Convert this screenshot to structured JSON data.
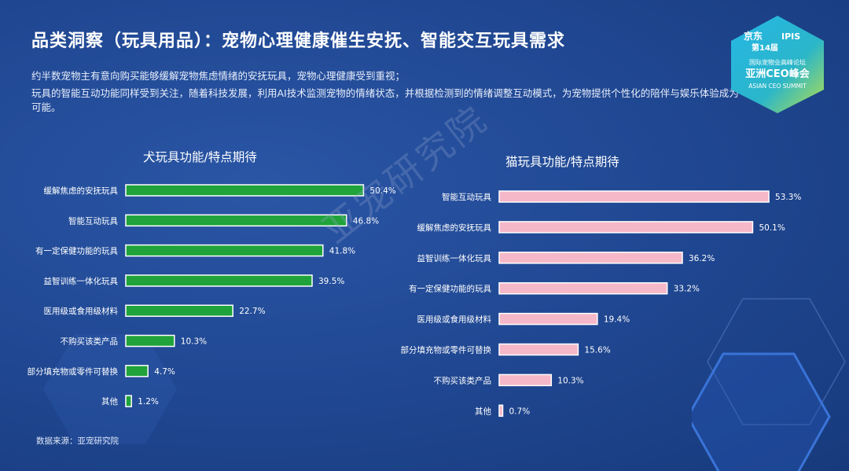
{
  "header": {
    "title": "品类洞察（玩具用品）：宠物心理健康催生安抚、智能交互玩具需求",
    "desc_line1": "约半数宠物主有意向购买能够缓解宠物焦虑情绪的安抚玩具，宠物心理健康受到重视；",
    "desc_line2": "玩具的智能互动功能同样受到关注，随着科技发展，利用AI技术监测宠物的情绪状态，并根据检测到的情绪调整互动模式，为宠物提供个性化的陪伴与娱乐体验成为可能。"
  },
  "badge": {
    "brand": "京东",
    "edition": "第14届",
    "ipis": "IPIS",
    "forum": "国际宠物业高峰论坛",
    "summit_cn": "亚洲CEO峰会",
    "summit_en": "ASIAN CEO SUMMIT"
  },
  "watermark": "亚宠研究院",
  "source": "数据来源：亚宠研究院",
  "colors": {
    "dog_bar": "#1fa33a",
    "cat_bar": "#f5b8c8",
    "bar_border": "#ffffff",
    "background": "#1f4690"
  },
  "chart_data": [
    {
      "type": "bar",
      "orientation": "horizontal",
      "title": "犬玩具功能/特点期待",
      "categories": [
        "缓解焦虑的安抚玩具",
        "智能互动玩具",
        "有一定保健功能的玩具",
        "益智训练一体化玩具",
        "医用级或食用级材料",
        "不购买该类产品",
        "部分填充物或零件可替换",
        "其他"
      ],
      "values": [
        50.4,
        46.8,
        41.8,
        39.5,
        22.7,
        10.3,
        4.7,
        1.2
      ],
      "labels": [
        "50.4%",
        "46.8%",
        "41.8%",
        "39.5%",
        "22.7%",
        "10.3%",
        "4.7%",
        "1.2%"
      ],
      "xlim": [
        0,
        55
      ],
      "color": "#1fa33a"
    },
    {
      "type": "bar",
      "orientation": "horizontal",
      "title": "猫玩具功能/特点期待",
      "categories": [
        "智能互动玩具",
        "缓解焦虑的安抚玩具",
        "益智训练一体化玩具",
        "有一定保健功能的玩具",
        "医用级或食用级材料",
        "部分填充物或零件可替换",
        "不购买该类产品",
        "其他"
      ],
      "values": [
        53.3,
        50.1,
        36.2,
        33.2,
        19.4,
        15.6,
        10.3,
        0.7
      ],
      "labels": [
        "53.3%",
        "50.1%",
        "36.2%",
        "33.2%",
        "19.4%",
        "15.6%",
        "10.3%",
        "0.7%"
      ],
      "xlim": [
        0,
        55
      ],
      "color": "#f5b8c8"
    }
  ]
}
